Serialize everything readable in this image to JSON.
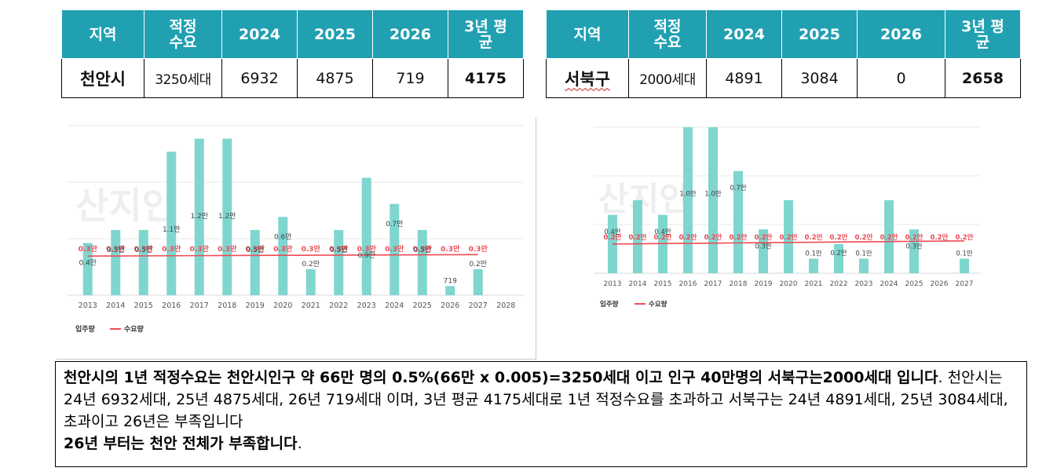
{
  "tables": [
    {
      "headers": [
        "지역",
        "적정\n수요",
        "2024",
        "2025",
        "2026",
        "3년 평\n균"
      ],
      "row": {
        "region": "천안시",
        "demand": "3250세대",
        "y2024": "6932",
        "y2025": "4875",
        "y2026": "719",
        "avg": "4175"
      }
    },
    {
      "headers": [
        "지역",
        "적정\n수요",
        "2024",
        "2025",
        "2026",
        "3년 평\n균"
      ],
      "row": {
        "region": "서북구",
        "demand": "2000세대",
        "y2024": "4891",
        "y2025": "3084",
        "y2026": "0",
        "avg": "2658"
      }
    }
  ],
  "chart_data": [
    {
      "type": "bar",
      "categories": [
        "2013",
        "2014",
        "2015",
        "2016",
        "2017",
        "2018",
        "2019",
        "2020",
        "2021",
        "2022",
        "2023",
        "2024",
        "2025",
        "2026",
        "2027",
        "2028"
      ],
      "series": [
        {
          "name": "입주량",
          "values": [
            0.4,
            0.5,
            0.5,
            1.1,
            1.2,
            1.2,
            0.5,
            0.6,
            0.2,
            0.5,
            0.9,
            0.7,
            0.5,
            0.07,
            0.2,
            0
          ]
        },
        {
          "name": "수요량",
          "values": [
            0.3,
            0.3,
            0.3,
            0.3,
            0.3,
            0.3,
            0.3,
            0.3,
            0.3,
            0.3,
            0.3,
            0.3,
            0.3,
            0.3,
            0.3,
            null
          ]
        }
      ],
      "bar_labels": [
        "0.4만",
        "0.5만",
        "0.5만",
        "1.1만",
        "1.2만",
        "1.2만",
        "0.5만",
        "0.6만",
        "0.2만",
        "0.5만",
        "0.9만",
        "0.7만",
        "0.5만",
        "719",
        "0.2만",
        ""
      ],
      "demand_labels": [
        "0.3만",
        "0.3만",
        "0.3만",
        "0.3만",
        "0.3만",
        "0.3만",
        "0.3만",
        "0.3만",
        "0.3만",
        "0.3만",
        "0.3만",
        "0.3만",
        "0.3만",
        "0.3만",
        "0.3만",
        ""
      ],
      "ylim": [
        0,
        1.3
      ],
      "grid": true,
      "legend": "bottom-left",
      "colors": {
        "bar": "#7fd6cf",
        "line": "#ee4b55"
      }
    },
    {
      "type": "bar",
      "categories": [
        "2013",
        "2014",
        "2015",
        "2016",
        "2017",
        "2018",
        "2019",
        "2020",
        "2021",
        "2022",
        "2023",
        "2024",
        "2025",
        "2026",
        "2027"
      ],
      "series": [
        {
          "name": "입주량",
          "values": [
            0.4,
            0.5,
            0.4,
            1.0,
            1.0,
            0.7,
            0.3,
            0.5,
            0.1,
            0.2,
            0.1,
            0.5,
            0.3,
            0,
            0.1
          ]
        },
        {
          "name": "수요량",
          "values": [
            0.2,
            0.2,
            0.2,
            0.2,
            0.2,
            0.2,
            0.2,
            0.2,
            0.2,
            0.2,
            0.2,
            0.2,
            0.2,
            0.2,
            0.2
          ]
        }
      ],
      "bar_labels": [
        "0.4만",
        "",
        "0.4만",
        "1.0만",
        "1.0만",
        "0.7만",
        "0.3만",
        "",
        "0.1만",
        "0.2만",
        "0.1만",
        "",
        "0.3만",
        "",
        "0.1만"
      ],
      "demand_labels": [
        "0.2만",
        "0.2만",
        "0.2만",
        "0.2만",
        "0.2만",
        "0.2만",
        "0.2만",
        "0.2만",
        "0.2만",
        "0.2만",
        "0.2만",
        "0.2만",
        "0.2만",
        "0.2만",
        "0.2만"
      ],
      "ylim": [
        0,
        1.0
      ],
      "grid": true,
      "legend": "bottom-left",
      "colors": {
        "bar": "#7fd6cf",
        "line": "#ee4b55"
      }
    }
  ],
  "legend": {
    "supply": "입주량",
    "demand": "수요량"
  },
  "note": {
    "b1": "천안시의 1년 적정수요는 천안시인구 약 66만 명의 0.5%(66만 x 0.005)=3250세대 이고 인구 40만명의 서북구는2000세대 입니다",
    "t1": ". 천안시는 24년 6932세대, 25년 4875세대, 26년 719세대 이며, 3년 평균 4175세대로 1년 적정수요를 초과하고 서북구는 24년 4891세대, 25년 3084세대, 초과이고 26년은 부족입니다",
    "b2": "26년 부터는 천안 전체가 부족합니다",
    "t2": "."
  }
}
